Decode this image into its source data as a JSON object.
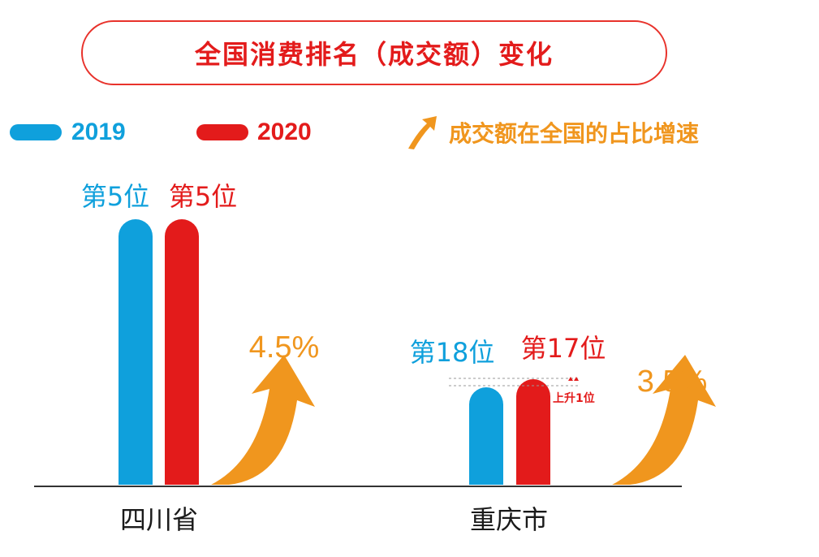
{
  "chart_data": {
    "type": "bar",
    "title": "全国消费排名（成交额）变化",
    "categories": [
      "四川省",
      "重庆市"
    ],
    "series": [
      {
        "name": "2019",
        "color": "#0fa0dc",
        "ranks": [
          5,
          18
        ],
        "rank_labels": [
          "第5位",
          "第18位"
        ]
      },
      {
        "name": "2020",
        "color": "#e31b1b",
        "ranks": [
          5,
          17
        ],
        "rank_labels": [
          "第5位",
          "第17位"
        ]
      }
    ],
    "growth_legend": "成交额在全国的占比增速",
    "growth_values": [
      "4.5%",
      "3.5%"
    ],
    "growth_color": "#f0961e",
    "annotation": "上升1位"
  }
}
